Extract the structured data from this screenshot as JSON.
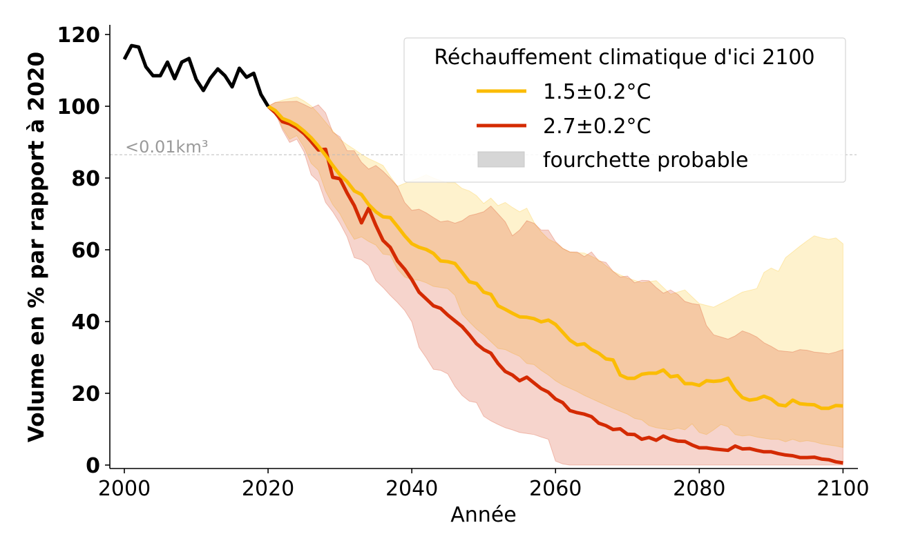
{
  "chart_data": {
    "type": "line",
    "title": "",
    "xlabel": "Année",
    "ylabel": "Volume en % par rapport à 2020",
    "xlim": [
      1998,
      2102
    ],
    "ylim": [
      0,
      122
    ],
    "grid": false,
    "x_ticks": [
      2000,
      2020,
      2040,
      2060,
      2080,
      2100
    ],
    "x_tick_labels": [
      "2000",
      "2020",
      "2040",
      "2060",
      "2080",
      "2100"
    ],
    "y_ticks": [
      0,
      20,
      40,
      60,
      80,
      100,
      120
    ],
    "y_tick_labels": [
      "0",
      "20",
      "40",
      "60",
      "80",
      "100",
      "120"
    ],
    "reference_line": {
      "value": 86.5,
      "label": "<0.01km³",
      "style": "dashed",
      "color": "#bbbbbb",
      "label_color": "#999999"
    },
    "legend": {
      "title": "Réchauffement climatique d'ici 2100",
      "position": "top-right",
      "entries": [
        {
          "label": "1.5±0.2°C",
          "kind": "line",
          "color": "#fbbc05"
        },
        {
          "label": "2.7±0.2°C",
          "kind": "line",
          "color": "#d42a00"
        },
        {
          "label": "fourchette probable",
          "kind": "patch",
          "color": "#d4d4d4"
        }
      ]
    },
    "historical": {
      "name": "observed",
      "color": "#000000",
      "x": [
        2000,
        2001,
        2002,
        2003,
        2004,
        2005,
        2006,
        2007,
        2008,
        2009,
        2010,
        2011,
        2012,
        2013,
        2014,
        2015,
        2016,
        2017,
        2018,
        2019,
        2020
      ],
      "values": [
        113.1,
        116.9,
        116.5,
        111.0,
        108.5,
        108.5,
        112.3,
        107.7,
        112.3,
        113.3,
        107.5,
        104.4,
        107.9,
        110.4,
        108.5,
        105.4,
        110.6,
        108.1,
        109.2,
        103.3,
        100.0
      ]
    },
    "series": [
      {
        "name": "1.5±0.2°C",
        "color": "#fbbc05",
        "band_color": "#fbbc05",
        "x_start": 2020,
        "values": [
          100,
          98.8,
          96.6,
          95.8,
          94.7,
          93.1,
          91.2,
          88.9,
          86.3,
          83.5,
          80.9,
          79.0,
          76.4,
          75.4,
          72.6,
          70.6,
          69.2,
          69.0,
          66.5,
          63.9,
          61.7,
          60.7,
          60.1,
          59.0,
          56.9,
          56.7,
          56.2,
          53.7,
          51.1,
          50.6,
          48.2,
          47.6,
          44.4,
          43.4,
          42.3,
          41.3,
          41.2,
          40.8,
          39.9,
          40.4,
          39.2,
          37.0,
          34.8,
          33.5,
          33.8,
          32.2,
          31.2,
          29.6,
          29.3,
          25.1,
          24.2,
          24.2,
          25.3,
          25.6,
          25.6,
          26.5,
          24.6,
          24.9,
          22.7,
          22.7,
          22.2,
          23.5,
          23.3,
          23.5,
          24.2,
          21.0,
          18.8,
          18.1,
          18.4,
          19.2,
          18.4,
          16.8,
          16.5,
          18.1,
          17.1,
          16.9,
          16.8,
          15.8,
          15.8,
          16.6,
          16.5
        ],
        "band_upper": [
          100,
          101.0,
          101.7,
          102.2,
          102.6,
          101.5,
          100.1,
          98.0,
          95.6,
          93.2,
          90.8,
          89.3,
          88.0,
          86.6,
          85.4,
          84.5,
          83.5,
          80.5,
          77.7,
          78.5,
          79.3,
          80.0,
          80.9,
          80.0,
          79.3,
          78.7,
          78.7,
          77.1,
          76.4,
          75.1,
          72.9,
          74.4,
          72.3,
          73.2,
          71.8,
          70.6,
          71.6,
          67.7,
          65.0,
          63.0,
          62.0,
          60.4,
          59.4,
          59.2,
          59.1,
          58.2,
          57.2,
          55.6,
          54.0,
          53.0,
          52.1,
          51.5,
          50.8,
          51.1,
          51.4,
          49.5,
          47.6,
          48.2,
          48.8,
          46.9,
          45.0,
          44.5,
          44.0,
          45.0,
          46.0,
          47.1,
          48.2,
          48.7,
          49.2,
          53.7,
          54.9,
          54.0,
          57.8,
          59.4,
          61.0,
          62.5,
          63.9,
          63.3,
          62.9,
          63.3,
          61.7
        ],
        "band_lower": [
          100,
          98.5,
          94.0,
          90.8,
          91.8,
          88.6,
          84.1,
          82.2,
          76.4,
          72.6,
          70.0,
          66.2,
          62.9,
          63.6,
          62.3,
          61.3,
          58.8,
          58.5,
          54.6,
          52.4,
          51.7,
          51.5,
          50.8,
          49.8,
          49.5,
          49.2,
          47.3,
          42.1,
          39.9,
          37.9,
          36.3,
          34.4,
          32.5,
          32.2,
          31.2,
          30.3,
          28.3,
          28.0,
          26.4,
          25.1,
          23.5,
          22.3,
          21.4,
          20.5,
          19.4,
          18.5,
          17.6,
          16.7,
          15.8,
          15.0,
          14.2,
          13.0,
          12.6,
          11.0,
          10.4,
          10.1,
          9.8,
          10.3,
          9.8,
          11.5,
          9.1,
          8.5,
          9.8,
          11.3,
          10.7,
          8.5,
          8.1,
          8.3,
          7.8,
          7.5,
          7.2,
          7.2,
          6.5,
          7.2,
          6.5,
          6.8,
          6.5,
          5.9,
          5.6,
          5.3,
          4.9
        ]
      },
      {
        "name": "2.7±0.2°C",
        "color": "#d42a00",
        "band_color": "#d42a00",
        "x_start": 2020,
        "values": [
          100,
          98.2,
          95.7,
          95.1,
          94.0,
          92.4,
          90.2,
          87.8,
          88.0,
          80.2,
          79.8,
          75.8,
          72.3,
          67.5,
          71.6,
          66.8,
          62.6,
          60.7,
          56.9,
          54.6,
          51.7,
          48.2,
          46.3,
          44.4,
          43.7,
          41.8,
          40.2,
          38.6,
          36.3,
          33.8,
          32.2,
          31.2,
          28.3,
          26.1,
          25.1,
          23.5,
          24.5,
          22.9,
          21.3,
          20.3,
          18.4,
          17.4,
          15.2,
          14.6,
          14.2,
          13.5,
          11.7,
          11.0,
          9.9,
          10.1,
          8.6,
          8.5,
          7.2,
          7.7,
          6.9,
          8.1,
          7.2,
          6.7,
          6.6,
          5.6,
          4.8,
          4.8,
          4.5,
          4.3,
          4.1,
          5.3,
          4.5,
          4.6,
          4.1,
          3.7,
          3.7,
          3.2,
          2.8,
          2.6,
          2.1,
          2.1,
          2.2,
          1.7,
          1.5,
          0.9,
          0.6
        ],
        "band_upper": [
          100,
          101.1,
          101.2,
          101.3,
          101.4,
          100.5,
          99.5,
          100.4,
          98.2,
          92.8,
          91.5,
          87.6,
          87.6,
          84.4,
          82.5,
          83.5,
          81.9,
          79.9,
          77.7,
          73.2,
          71.0,
          71.3,
          70.3,
          69.0,
          67.8,
          68.1,
          67.4,
          68.1,
          69.5,
          70.0,
          70.6,
          72.2,
          70.0,
          67.8,
          63.9,
          65.5,
          68.1,
          67.4,
          65.5,
          65.5,
          62.3,
          60.4,
          59.4,
          59.4,
          58.1,
          59.4,
          56.9,
          56.5,
          54.0,
          52.4,
          52.7,
          50.8,
          51.5,
          51.4,
          49.5,
          47.9,
          48.8,
          47.6,
          45.6,
          45.0,
          44.7,
          38.9,
          36.3,
          35.7,
          35.1,
          36.0,
          37.4,
          36.7,
          35.7,
          34.1,
          33.1,
          31.9,
          31.7,
          31.5,
          32.2,
          32.0,
          31.5,
          31.3,
          31.0,
          31.5,
          32.2
        ],
        "band_lower": [
          100,
          98.2,
          93.4,
          89.9,
          90.8,
          87.3,
          80.9,
          79.0,
          73.2,
          70.6,
          67.4,
          63.6,
          57.8,
          57.2,
          55.6,
          51.4,
          49.5,
          47.3,
          45.3,
          43.1,
          39.9,
          32.8,
          29.9,
          26.7,
          26.4,
          25.4,
          21.9,
          19.4,
          17.8,
          17.4,
          13.6,
          12.3,
          11.3,
          10.4,
          9.8,
          9.1,
          8.8,
          8.5,
          7.8,
          7.2,
          1.1,
          0.3,
          0,
          0,
          0,
          0,
          0,
          0,
          0,
          0,
          0,
          0,
          0,
          0,
          0,
          0,
          0,
          0,
          0,
          0,
          0,
          0,
          0,
          0,
          0,
          0,
          0,
          0,
          0,
          0,
          0,
          0,
          0,
          0,
          0,
          0,
          0,
          0,
          0,
          0,
          0
        ]
      }
    ]
  }
}
